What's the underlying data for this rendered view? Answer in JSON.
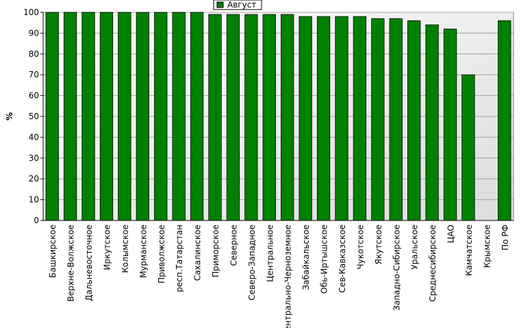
{
  "chart_data": {
    "type": "bar",
    "y_label": "%",
    "categories": [
      "Башкирское",
      "Верхне-Волжское",
      "Дальневосточное",
      "Иркутское",
      "Колымское",
      "Мурманское",
      "Приволжское",
      "респ.Татарстан",
      "Сахалинское",
      "Приморское",
      "Северное",
      "Северо-Западное",
      "Центральное",
      "Центрально-Черноземное",
      "Забайкальское",
      "Обь-Иртышское",
      "Сев-Кавказское",
      "Чукотское",
      "Якутское",
      "Западно-Сибирское",
      "Уральское",
      "Среднесибирское",
      "ЦАО",
      "Камчатское",
      "Крымское",
      "По РФ"
    ],
    "series": [
      {
        "name": "Август",
        "color": "#008000",
        "values": [
          100,
          100,
          100,
          100,
          100,
          100,
          100,
          100,
          100,
          99,
          99,
          99,
          99,
          99,
          98,
          98,
          98,
          98,
          97,
          97,
          96,
          94,
          92,
          70,
          null,
          96
        ]
      }
    ],
    "ylim": [
      0,
      100
    ],
    "yticks": [
      0,
      10,
      20,
      30,
      40,
      50,
      60,
      70,
      80,
      90,
      100
    ],
    "grid": true,
    "legend": "top"
  }
}
